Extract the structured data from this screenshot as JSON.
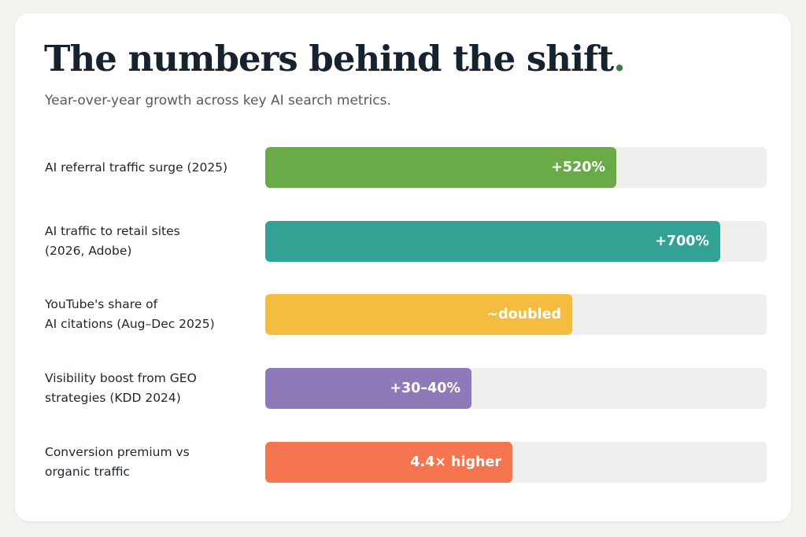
{
  "title": "The numbers behind the shift",
  "title_dot": ".",
  "subtitle": "Year-over-year growth across key AI search metrics.",
  "colors": {
    "track": "#f0efed",
    "title": "#16222e",
    "title_dot": "#3f7a52"
  },
  "chart_data": {
    "type": "bar",
    "orientation": "horizontal",
    "grid": false,
    "categories": [
      "AI referral traffic surge (2025)",
      "AI traffic to retail sites\n(2026, Adobe)",
      "YouTube's share of\nAI citations (Aug–Dec 2025)",
      "Visibility boost from GEO\nstrategies (KDD 2024)",
      "Conversion premium vs\norganic traffic"
    ],
    "bars": [
      {
        "label": "AI referral traffic surge (2025)",
        "value_label": "+520%",
        "fill_fraction": 0.7,
        "color": "#6aaa48"
      },
      {
        "label": "AI traffic to retail sites\n(2026, Adobe)",
        "value_label": "+700%",
        "fill_fraction": 0.907,
        "color": "#33a194"
      },
      {
        "label": "YouTube's share of\nAI citations (Aug–Dec 2025)",
        "value_label": "~doubled",
        "fill_fraction": 0.613,
        "color": "#f5bd3f"
      },
      {
        "label": "Visibility boost from GEO\nstrategies (KDD 2024)",
        "value_label": "+30–40%",
        "fill_fraction": 0.411,
        "color": "#8e79b9"
      },
      {
        "label": "Conversion premium vs\norganic traffic",
        "value_label": "4.4× higher",
        "fill_fraction": 0.493,
        "color": "#f47550"
      }
    ]
  }
}
